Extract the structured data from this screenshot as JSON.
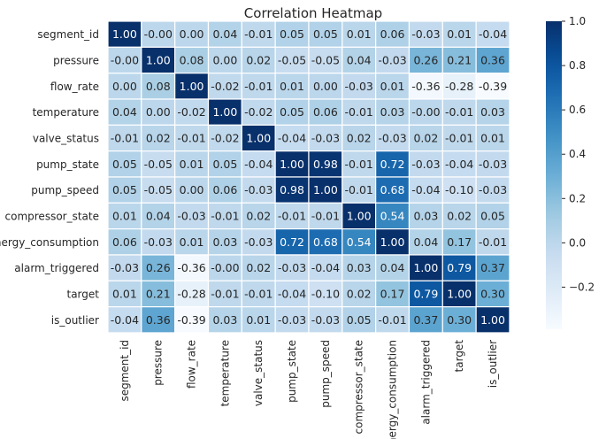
{
  "chart_data": {
    "type": "heatmap",
    "title": "Correlation Heatmap",
    "xlabel": "",
    "ylabel": "",
    "labels": [
      "segment_id",
      "pressure",
      "flow_rate",
      "temperature",
      "valve_status",
      "pump_state",
      "pump_speed",
      "compressor_state",
      "energy_consumption",
      "alarm_triggered",
      "target",
      "is_outlier"
    ],
    "values": [
      [
        1.0,
        -0.0,
        0.0,
        0.04,
        -0.01,
        0.05,
        0.05,
        0.01,
        0.06,
        -0.03,
        0.01,
        -0.04
      ],
      [
        -0.0,
        1.0,
        0.08,
        0.0,
        0.02,
        -0.05,
        -0.05,
        0.04,
        -0.03,
        0.26,
        0.21,
        0.36
      ],
      [
        0.0,
        0.08,
        1.0,
        -0.02,
        -0.01,
        0.01,
        0.0,
        -0.03,
        0.01,
        -0.36,
        -0.28,
        -0.39
      ],
      [
        0.04,
        0.0,
        -0.02,
        1.0,
        -0.02,
        0.05,
        0.06,
        -0.01,
        0.03,
        -0.0,
        -0.01,
        0.03
      ],
      [
        -0.01,
        0.02,
        -0.01,
        -0.02,
        1.0,
        -0.04,
        -0.03,
        0.02,
        -0.03,
        0.02,
        -0.01,
        0.01
      ],
      [
        0.05,
        -0.05,
        0.01,
        0.05,
        -0.04,
        1.0,
        0.98,
        -0.01,
        0.72,
        -0.03,
        -0.04,
        -0.03
      ],
      [
        0.05,
        -0.05,
        0.0,
        0.06,
        -0.03,
        0.98,
        1.0,
        -0.01,
        0.68,
        -0.04,
        -0.1,
        -0.03
      ],
      [
        0.01,
        0.04,
        -0.03,
        -0.01,
        0.02,
        -0.01,
        -0.01,
        1.0,
        0.54,
        0.03,
        0.02,
        0.05
      ],
      [
        0.06,
        -0.03,
        0.01,
        0.03,
        -0.03,
        0.72,
        0.68,
        0.54,
        1.0,
        0.04,
        0.17,
        -0.01
      ],
      [
        -0.03,
        0.26,
        -0.36,
        -0.0,
        0.02,
        -0.03,
        -0.04,
        0.03,
        0.04,
        1.0,
        0.79,
        0.37
      ],
      [
        0.01,
        0.21,
        -0.28,
        -0.01,
        -0.01,
        -0.04,
        -0.1,
        0.02,
        0.17,
        0.79,
        1.0,
        0.3
      ],
      [
        -0.04,
        0.36,
        -0.39,
        0.03,
        0.01,
        -0.03,
        -0.03,
        0.05,
        -0.01,
        0.37,
        0.3,
        1.0
      ]
    ],
    "value_range": [
      -0.39,
      1.0
    ],
    "colormap": "Blues",
    "colorbar_ticks": [
      -0.2,
      0.0,
      0.2,
      0.4,
      0.6,
      0.8,
      1.0
    ],
    "annotation_format": "0.00",
    "cell_border_color": "#ffffff",
    "text_color_light": "#ffffff",
    "text_color_dark": "#262626",
    "grid": false,
    "legend": "colorbar-right"
  }
}
